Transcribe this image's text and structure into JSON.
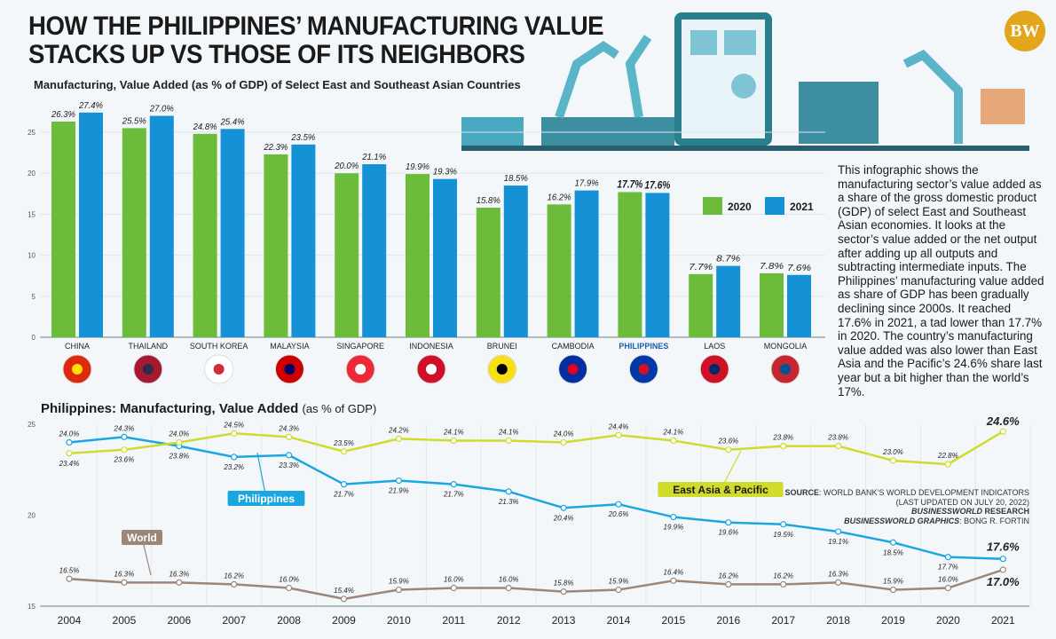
{
  "header": {
    "title_line1": "HOW THE PHILIPPINES’ MANUFACTURING VALUE",
    "title_line2": "STACKS UP VS THOSE OF ITS NEIGHBORS",
    "logo_text": "BW"
  },
  "description": "This infographic shows the manufacturing sector’s value added as a share of the gross domestic product (GDP) of select East and Southeast Asian economies. It looks at the sector’s value added or the net output after adding up all outputs and subtracting intermediate inputs. The Philippines’ manufacturing value added as share of GDP has been gradually declining since 2000s. It reached 17.6% in 2021, a tad lower than 17.7% in 2020. The country’s manufacturing value added was also lower than East Asia and the Pacific’s 24.6% share last year but a bit higher than the world’s 17%.",
  "source": {
    "line1_bold": "SOURCE",
    "line1": ": WORLD BANK’S WORLD DEVELOPMENT INDICATORS",
    "line2": "(LAST UPDATED ON JULY 20, 2022)",
    "line3_bold": "BUSINESSWORLD",
    "line3": " RESEARCH",
    "line4_bold": "BUSINESSWORLD GRAPHICS",
    "line4": ": BONG R. FORTIN"
  },
  "chart_data": [
    {
      "type": "bar",
      "title": "Manufacturing, Value Added (as % of GDP) of Select East and Southeast Asian Countries",
      "categories": [
        "CHINA",
        "THAILAND",
        "SOUTH KOREA",
        "MALAYSIA",
        "SINGAPORE",
        "INDONESIA",
        "BRUNEI",
        "CAMBODIA",
        "PHILIPPINES",
        "LAOS",
        "MONGOLIA"
      ],
      "highlight": "PHILIPPINES",
      "series": [
        {
          "name": "2020",
          "color": "#6dbb3a",
          "values": [
            26.3,
            25.5,
            24.8,
            22.3,
            20.0,
            19.9,
            15.8,
            16.2,
            17.7,
            7.7,
            7.8
          ]
        },
        {
          "name": "2021",
          "color": "#1592d6",
          "values": [
            27.4,
            27.0,
            25.4,
            23.5,
            21.1,
            19.3,
            18.5,
            17.9,
            17.6,
            8.7,
            7.6
          ]
        }
      ],
      "yticks": [
        "0",
        "5",
        "10",
        "15",
        "20",
        "25"
      ],
      "ylim": [
        0,
        27.4
      ],
      "legend": "right",
      "grid": true,
      "unit": "%"
    },
    {
      "type": "line",
      "title": "Philippines: Manufacturing, Value Added",
      "title_suffix": "(as % of GDP)",
      "x": [
        "2004",
        "2005",
        "2006",
        "2007",
        "2008",
        "2009",
        "2010",
        "2011",
        "2012",
        "2013",
        "2014",
        "2015",
        "2016",
        "2017",
        "2018",
        "2019",
        "2020",
        "2021"
      ],
      "series": [
        {
          "name": "Philippines",
          "color": "#1aa6e0",
          "values": [
            24.0,
            24.3,
            23.8,
            23.2,
            23.3,
            21.7,
            21.9,
            21.7,
            21.3,
            20.4,
            20.6,
            19.9,
            19.6,
            19.5,
            19.1,
            18.5,
            17.7,
            17.6
          ]
        },
        {
          "name": "East Asia & Pacific",
          "color": "#cfdc2c",
          "values": [
            23.4,
            23.6,
            24.0,
            24.5,
            24.3,
            23.5,
            24.2,
            24.1,
            24.1,
            24.0,
            24.4,
            24.1,
            23.6,
            23.8,
            23.8,
            23.0,
            22.8,
            24.6
          ]
        },
        {
          "name": "World",
          "color": "#9b877a",
          "values": [
            16.5,
            16.3,
            16.3,
            16.2,
            16.0,
            15.4,
            15.9,
            16.0,
            16.0,
            15.8,
            15.9,
            16.4,
            16.2,
            16.2,
            16.3,
            15.9,
            16.0,
            17.0
          ]
        }
      ],
      "yticks": [
        "15",
        "20",
        "25"
      ],
      "ylim": [
        15,
        25
      ],
      "grid": true,
      "unit": "%"
    }
  ]
}
